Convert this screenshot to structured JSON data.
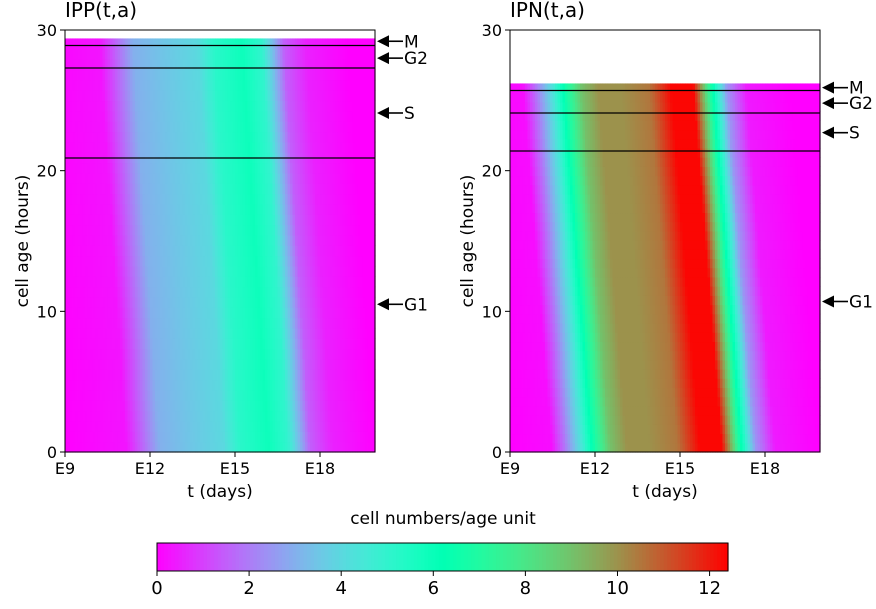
{
  "chart_data": [
    {
      "type": "heatmap",
      "title": "IPP(t,a)",
      "xlabel": "t (days)",
      "ylabel": "cell age (hours)",
      "xticks": [
        "E9",
        "E12",
        "E15",
        "E18"
      ],
      "yticks": [
        "0",
        "10",
        "20",
        "30"
      ],
      "ylim": [
        0,
        30
      ],
      "xlim": [
        9,
        20.1
      ],
      "age_max": 29.4,
      "phase_boundaries": [
        20.9,
        27.3,
        28.9
      ],
      "phase_markers": [
        {
          "label": "M",
          "age": 29.2
        },
        {
          "label": "G2",
          "age": 28.0
        },
        {
          "label": "S",
          "age": 24.1
        },
        {
          "label": "G1",
          "age": 10.5
        }
      ],
      "color_at_age0": [
        {
          "t": 9.0,
          "v": 0.0
        },
        {
          "t": 11.2,
          "v": 0.3
        },
        {
          "t": 12.4,
          "v": 3.0
        },
        {
          "t": 13.5,
          "v": 3.5
        },
        {
          "t": 14.7,
          "v": 4.0
        },
        {
          "t": 15.3,
          "v": 5.2
        },
        {
          "t": 16.3,
          "v": 5.9
        },
        {
          "t": 17.0,
          "v": 5.0
        },
        {
          "t": 17.8,
          "v": 1.5
        },
        {
          "t": 18.6,
          "v": 0.5
        },
        {
          "t": 20.1,
          "v": 0.0
        }
      ],
      "drift_days_per_30h": 1.0
    },
    {
      "type": "heatmap",
      "title": "IPN(t,a)",
      "xlabel": "t (days)",
      "ylabel": "cell age (hours)",
      "xticks": [
        "E9",
        "E12",
        "E15",
        "E18"
      ],
      "yticks": [
        "0",
        "10",
        "20",
        "30"
      ],
      "ylim": [
        0,
        30
      ],
      "xlim": [
        9,
        20.1
      ],
      "age_max": 26.2,
      "phase_boundaries": [
        21.4,
        24.1,
        25.7
      ],
      "phase_markers": [
        {
          "label": "M",
          "age": 25.9
        },
        {
          "label": "G2",
          "age": 24.8
        },
        {
          "label": "S",
          "age": 22.7
        },
        {
          "label": "G1",
          "age": 10.7
        }
      ],
      "color_at_age0": [
        {
          "t": 9.0,
          "v": 0.0
        },
        {
          "t": 10.5,
          "v": 0.2
        },
        {
          "t": 11.0,
          "v": 2.0
        },
        {
          "t": 11.6,
          "v": 4.5
        },
        {
          "t": 12.0,
          "v": 6.5
        },
        {
          "t": 12.6,
          "v": 9.0
        },
        {
          "t": 13.2,
          "v": 10.0
        },
        {
          "t": 14.0,
          "v": 10.0
        },
        {
          "t": 15.0,
          "v": 10.5
        },
        {
          "t": 15.8,
          "v": 12.3
        },
        {
          "t": 16.6,
          "v": 12.3
        },
        {
          "t": 17.2,
          "v": 7.0
        },
        {
          "t": 17.8,
          "v": 2.5
        },
        {
          "t": 18.5,
          "v": 0.4
        },
        {
          "t": 20.1,
          "v": 0.0
        }
      ],
      "drift_days_per_30h": 1.2
    }
  ],
  "colorbar": {
    "label": "cell numbers/age unit",
    "min": 0,
    "max": 12.4,
    "ticks": [
      "0",
      "2",
      "4",
      "6",
      "8",
      "10",
      "12"
    ],
    "colormap": "rainbow"
  }
}
